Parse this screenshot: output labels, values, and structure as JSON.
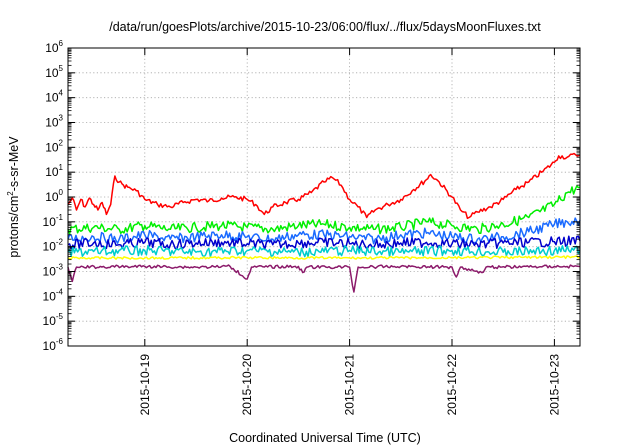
{
  "chart_data": {
    "type": "line",
    "title": "/data/run/goesPlots/archive/2015-10-23/06:00/flux/../flux/5daysMoonFluxes.txt",
    "xlabel": "Coordinated Universal Time (UTC)",
    "ylabel_parts": {
      "base": "protons/cm",
      "sup": "2",
      "rest": "-s-sr-MeV"
    },
    "y_scale": "log",
    "ylim": [
      1e-06,
      1000000.0
    ],
    "y_ticks": [
      {
        "value": 1e-06,
        "base": "10",
        "exp": "-6"
      },
      {
        "value": 1e-05,
        "base": "10",
        "exp": "-5"
      },
      {
        "value": 0.0001,
        "base": "10",
        "exp": "-4"
      },
      {
        "value": 0.001,
        "base": "10",
        "exp": "-3"
      },
      {
        "value": 0.01,
        "base": "10",
        "exp": "-2"
      },
      {
        "value": 0.1,
        "base": "10",
        "exp": "-1"
      },
      {
        "value": 1,
        "base": "10",
        "exp": "0"
      },
      {
        "value": 10,
        "base": "10",
        "exp": "1"
      },
      {
        "value": 100,
        "base": "10",
        "exp": "2"
      },
      {
        "value": 1000,
        "base": "10",
        "exp": "3"
      },
      {
        "value": 10000,
        "base": "10",
        "exp": "4"
      },
      {
        "value": 100000,
        "base": "10",
        "exp": "5"
      },
      {
        "value": 1000000,
        "base": "10",
        "exp": "6"
      }
    ],
    "xlim": [
      "2015-10-18T06:00",
      "2015-10-23T06:00"
    ],
    "x_ticks": [
      "2015-10-19",
      "2015-10-20",
      "2015-10-21",
      "2015-10-22",
      "2015-10-23"
    ],
    "grid": true,
    "legend": "none",
    "series": [
      {
        "color": "#ff0000",
        "points": [
          [
            "2015-10-18T06:00",
            0.5
          ],
          [
            "2015-10-18T07:00",
            0.9
          ],
          [
            "2015-10-18T08:00",
            0.3
          ],
          [
            "2015-10-18T09:00",
            0.8
          ],
          [
            "2015-10-18T10:00",
            0.4
          ],
          [
            "2015-10-18T11:00",
            0.9
          ],
          [
            "2015-10-18T12:00",
            0.5
          ],
          [
            "2015-10-18T13:00",
            0.3
          ],
          [
            "2015-10-18T14:00",
            0.6
          ],
          [
            "2015-10-18T15:00",
            0.2
          ],
          [
            "2015-10-18T16:00",
            0.5
          ],
          [
            "2015-10-18T17:00",
            7
          ],
          [
            "2015-10-18T18:00",
            4
          ],
          [
            "2015-10-18T19:00",
            3
          ],
          [
            "2015-10-18T20:00",
            2.5
          ],
          [
            "2015-10-18T22:00",
            1.8
          ],
          [
            "2015-10-19T00:00",
            0.8
          ],
          [
            "2015-10-19T03:00",
            0.5
          ],
          [
            "2015-10-19T06:00",
            0.4
          ],
          [
            "2015-10-19T09:00",
            0.6
          ],
          [
            "2015-10-19T12:00",
            0.8
          ],
          [
            "2015-10-19T15:00",
            0.7
          ],
          [
            "2015-10-19T18:00",
            0.9
          ],
          [
            "2015-10-19T21:00",
            1.0
          ],
          [
            "2015-10-20T00:00",
            0.8
          ],
          [
            "2015-10-20T02:00",
            0.5
          ],
          [
            "2015-10-20T04:00",
            0.2
          ],
          [
            "2015-10-20T06:00",
            0.4
          ],
          [
            "2015-10-20T09:00",
            0.6
          ],
          [
            "2015-10-20T12:00",
            0.8
          ],
          [
            "2015-10-20T15:00",
            1.5
          ],
          [
            "2015-10-20T18:00",
            4
          ],
          [
            "2015-10-20T20:00",
            6
          ],
          [
            "2015-10-20T22:00",
            3
          ],
          [
            "2015-10-21T00:00",
            0.8
          ],
          [
            "2015-10-21T02:00",
            0.4
          ],
          [
            "2015-10-21T04:00",
            0.15
          ],
          [
            "2015-10-21T06:00",
            0.3
          ],
          [
            "2015-10-21T09:00",
            0.5
          ],
          [
            "2015-10-21T12:00",
            0.8
          ],
          [
            "2015-10-21T15:00",
            2
          ],
          [
            "2015-10-21T18:00",
            5
          ],
          [
            "2015-10-21T19:00",
            8
          ],
          [
            "2015-10-21T21:00",
            4
          ],
          [
            "2015-10-22T00:00",
            1
          ],
          [
            "2015-10-22T02:00",
            0.3
          ],
          [
            "2015-10-22T04:00",
            0.15
          ],
          [
            "2015-10-22T06:00",
            0.25
          ],
          [
            "2015-10-22T09:00",
            0.4
          ],
          [
            "2015-10-22T12:00",
            0.8
          ],
          [
            "2015-10-22T15:00",
            2
          ],
          [
            "2015-10-22T18:00",
            4
          ],
          [
            "2015-10-22T21:00",
            10
          ],
          [
            "2015-10-23T00:00",
            25
          ],
          [
            "2015-10-23T01:00",
            45
          ],
          [
            "2015-10-23T03:00",
            40
          ],
          [
            "2015-10-23T05:00",
            50
          ],
          [
            "2015-10-23T06:00",
            48
          ]
        ]
      },
      {
        "color": "#00ee00",
        "points": [
          [
            "2015-10-18T06:00",
            0.05
          ],
          [
            "2015-10-18T12:00",
            0.06
          ],
          [
            "2015-10-18T18:00",
            0.05
          ],
          [
            "2015-10-19T00:00",
            0.07
          ],
          [
            "2015-10-19T06:00",
            0.05
          ],
          [
            "2015-10-19T12:00",
            0.06
          ],
          [
            "2015-10-19T18:00",
            0.07
          ],
          [
            "2015-10-20T00:00",
            0.06
          ],
          [
            "2015-10-20T06:00",
            0.05
          ],
          [
            "2015-10-20T12:00",
            0.07
          ],
          [
            "2015-10-20T18:00",
            0.08
          ],
          [
            "2015-10-21T00:00",
            0.06
          ],
          [
            "2015-10-21T06:00",
            0.05
          ],
          [
            "2015-10-21T12:00",
            0.06
          ],
          [
            "2015-10-21T18:00",
            0.1
          ],
          [
            "2015-10-22T00:00",
            0.07
          ],
          [
            "2015-10-22T06:00",
            0.05
          ],
          [
            "2015-10-22T12:00",
            0.08
          ],
          [
            "2015-10-22T18:00",
            0.15
          ],
          [
            "2015-10-23T00:00",
            0.5
          ],
          [
            "2015-10-23T03:00",
            1.5
          ],
          [
            "2015-10-23T06:00",
            2.5
          ]
        ]
      },
      {
        "color": "#1a6aff",
        "points": [
          [
            "2015-10-18T06:00",
            0.02
          ],
          [
            "2015-10-18T12:00",
            0.025
          ],
          [
            "2015-10-18T18:00",
            0.02
          ],
          [
            "2015-10-19T00:00",
            0.03
          ],
          [
            "2015-10-19T06:00",
            0.02
          ],
          [
            "2015-10-19T12:00",
            0.025
          ],
          [
            "2015-10-19T18:00",
            0.03
          ],
          [
            "2015-10-20T00:00",
            0.025
          ],
          [
            "2015-10-20T06:00",
            0.02
          ],
          [
            "2015-10-20T12:00",
            0.03
          ],
          [
            "2015-10-20T18:00",
            0.03
          ],
          [
            "2015-10-21T00:00",
            0.025
          ],
          [
            "2015-10-21T06:00",
            0.02
          ],
          [
            "2015-10-21T12:00",
            0.03
          ],
          [
            "2015-10-21T18:00",
            0.035
          ],
          [
            "2015-10-22T00:00",
            0.025
          ],
          [
            "2015-10-22T06:00",
            0.02
          ],
          [
            "2015-10-22T12:00",
            0.025
          ],
          [
            "2015-10-22T18:00",
            0.04
          ],
          [
            "2015-10-23T00:00",
            0.08
          ],
          [
            "2015-10-23T03:00",
            0.1
          ],
          [
            "2015-10-23T06:00",
            0.12
          ]
        ]
      },
      {
        "color": "#0000cc",
        "points": [
          [
            "2015-10-18T06:00",
            0.012
          ],
          [
            "2015-10-18T12:00",
            0.014
          ],
          [
            "2015-10-18T18:00",
            0.012
          ],
          [
            "2015-10-19T00:00",
            0.015
          ],
          [
            "2015-10-19T06:00",
            0.012
          ],
          [
            "2015-10-19T12:00",
            0.014
          ],
          [
            "2015-10-19T18:00",
            0.015
          ],
          [
            "2015-10-20T00:00",
            0.013
          ],
          [
            "2015-10-20T06:00",
            0.012
          ],
          [
            "2015-10-20T12:00",
            0.014
          ],
          [
            "2015-10-20T18:00",
            0.015
          ],
          [
            "2015-10-21T00:00",
            0.013
          ],
          [
            "2015-10-21T06:00",
            0.012
          ],
          [
            "2015-10-21T12:00",
            0.014
          ],
          [
            "2015-10-21T18:00",
            0.015
          ],
          [
            "2015-10-22T00:00",
            0.013
          ],
          [
            "2015-10-22T06:00",
            0.012
          ],
          [
            "2015-10-22T12:00",
            0.014
          ],
          [
            "2015-10-22T18:00",
            0.015
          ],
          [
            "2015-10-23T00:00",
            0.016
          ],
          [
            "2015-10-23T06:00",
            0.017
          ]
        ]
      },
      {
        "color": "#00cccc",
        "points": [
          [
            "2015-10-18T06:00",
            0.006
          ],
          [
            "2015-10-19T00:00",
            0.007
          ],
          [
            "2015-10-19T12:00",
            0.006
          ],
          [
            "2015-10-20T00:00",
            0.007
          ],
          [
            "2015-10-20T12:00",
            0.006
          ],
          [
            "2015-10-21T00:00",
            0.007
          ],
          [
            "2015-10-21T12:00",
            0.006
          ],
          [
            "2015-10-22T00:00",
            0.007
          ],
          [
            "2015-10-22T12:00",
            0.006
          ],
          [
            "2015-10-23T00:00",
            0.007
          ],
          [
            "2015-10-23T06:00",
            0.007
          ]
        ]
      },
      {
        "color": "#ffff00",
        "points": [
          [
            "2015-10-18T06:00",
            0.0035
          ],
          [
            "2015-10-19T00:00",
            0.0035
          ],
          [
            "2015-10-20T00:00",
            0.0036
          ],
          [
            "2015-10-21T00:00",
            0.0035
          ],
          [
            "2015-10-22T00:00",
            0.0036
          ],
          [
            "2015-10-23T00:00",
            0.0038
          ],
          [
            "2015-10-23T06:00",
            0.0038
          ]
        ]
      },
      {
        "color": "#8b1a6a",
        "points": [
          [
            "2015-10-18T06:00",
            0.0015
          ],
          [
            "2015-10-18T07:00",
            0.0004
          ],
          [
            "2015-10-18T08:00",
            0.0015
          ],
          [
            "2015-10-19T00:00",
            0.0016
          ],
          [
            "2015-10-19T12:00",
            0.0015
          ],
          [
            "2015-10-19T20:00",
            0.0016
          ],
          [
            "2015-10-20T00:00",
            0.0005
          ],
          [
            "2015-10-20T01:00",
            0.0015
          ],
          [
            "2015-10-20T12:00",
            0.0016
          ],
          [
            "2015-10-20T13:00",
            0.0009
          ],
          [
            "2015-10-20T14:00",
            0.0015
          ],
          [
            "2015-10-21T00:00",
            0.0015
          ],
          [
            "2015-10-21T01:00",
            0.00015
          ],
          [
            "2015-10-21T02:00",
            0.0015
          ],
          [
            "2015-10-21T12:00",
            0.0016
          ],
          [
            "2015-10-22T00:00",
            0.0015
          ],
          [
            "2015-10-22T01:00",
            0.0006
          ],
          [
            "2015-10-22T02:00",
            0.0015
          ],
          [
            "2015-10-22T07:00",
            0.0009
          ],
          [
            "2015-10-22T08:00",
            0.0015
          ],
          [
            "2015-10-23T00:00",
            0.0016
          ],
          [
            "2015-10-23T06:00",
            0.0016
          ]
        ]
      }
    ]
  }
}
